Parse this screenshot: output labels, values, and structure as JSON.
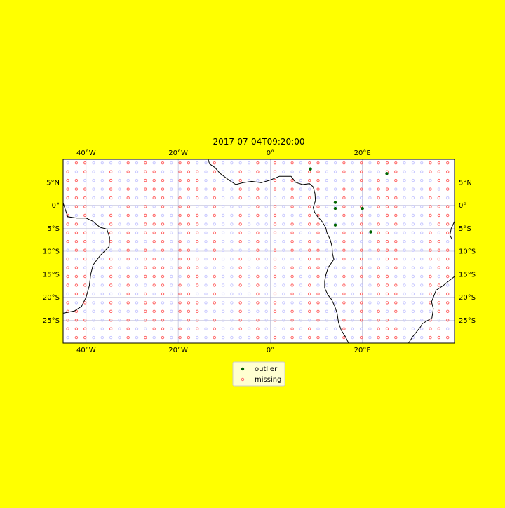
{
  "colors": {
    "background": "#ffff00",
    "ocean": "#ffffff",
    "grid": "#b0b0d0",
    "outlier": "#006400",
    "missing": "#ff6666",
    "valid": "#c8c8ff",
    "coast": "#000000",
    "legend_bg": "#ffffd0"
  },
  "chart_data": {
    "type": "scatter",
    "title": "2017-07-04T09:20:00",
    "xlim": [
      -45,
      40
    ],
    "ylim": [
      -30,
      10
    ],
    "x_ticks": [
      {
        "value": -40,
        "label": "40°W"
      },
      {
        "value": -20,
        "label": "20°W"
      },
      {
        "value": 0,
        "label": "0°"
      },
      {
        "value": 20,
        "label": "20°E"
      }
    ],
    "y_ticks": [
      {
        "value": 5,
        "label": "5°N"
      },
      {
        "value": 0,
        "label": "0°"
      },
      {
        "value": -5,
        "label": "5°S"
      },
      {
        "value": -10,
        "label": "10°S"
      },
      {
        "value": -15,
        "label": "15°S"
      },
      {
        "value": -20,
        "label": "20°S"
      },
      {
        "value": -25,
        "label": "25°S"
      }
    ],
    "grid": true,
    "legend_position": "bottom-center",
    "legend": [
      {
        "name": "outlier",
        "color": "#006400"
      },
      {
        "name": "missing",
        "color": "#ff6666"
      }
    ],
    "grid_points": {
      "lon_start": -44,
      "lon_step": 1.875,
      "lon_count": 45,
      "lat_start": 9.2,
      "lat_step": -1.9,
      "lat_count": 21
    },
    "missing_columns": [
      0,
      1,
      2,
      5,
      7,
      9,
      10,
      11,
      13,
      14,
      15,
      17,
      20,
      22,
      24,
      26,
      28,
      29,
      32,
      34,
      36,
      37,
      38,
      42,
      43,
      44
    ],
    "outliers": [
      {
        "lon": 8.7,
        "lat": 7.9
      },
      {
        "lon": 25.3,
        "lat": 6.9
      },
      {
        "lon": 14.1,
        "lat": 0.6
      },
      {
        "lon": 14.1,
        "lat": -0.7
      },
      {
        "lon": 20.0,
        "lat": -0.7
      },
      {
        "lon": 14.1,
        "lat": -4.3
      },
      {
        "lon": 21.8,
        "lat": -5.8
      }
    ],
    "coastlines": {
      "africa": [
        [
          -13.5,
          10
        ],
        [
          -13.2,
          9.0
        ],
        [
          -12.0,
          8.2
        ],
        [
          -11.0,
          7.0
        ],
        [
          -9.0,
          5.5
        ],
        [
          -7.5,
          4.5
        ],
        [
          -6.0,
          4.9
        ],
        [
          -4.0,
          5.2
        ],
        [
          -2.0,
          4.9
        ],
        [
          0.0,
          5.5
        ],
        [
          2.0,
          6.3
        ],
        [
          4.5,
          6.3
        ],
        [
          5.5,
          5.0
        ],
        [
          7.0,
          4.5
        ],
        [
          8.5,
          4.7
        ],
        [
          9.3,
          4.0
        ],
        [
          9.7,
          2.5
        ],
        [
          9.8,
          1.0
        ],
        [
          9.3,
          -0.5
        ],
        [
          9.6,
          -1.5
        ],
        [
          10.3,
          -2.5
        ],
        [
          11.2,
          -3.5
        ],
        [
          12.0,
          -4.8
        ],
        [
          12.3,
          -6.0
        ],
        [
          13.0,
          -7.5
        ],
        [
          13.4,
          -9.0
        ],
        [
          13.5,
          -10.5
        ],
        [
          13.8,
          -11.8
        ],
        [
          12.6,
          -13.5
        ],
        [
          12.1,
          -15.0
        ],
        [
          11.8,
          -16.5
        ],
        [
          11.8,
          -18.0
        ],
        [
          12.5,
          -19.5
        ],
        [
          13.3,
          -20.5
        ],
        [
          14.0,
          -22.0
        ],
        [
          14.5,
          -23.5
        ],
        [
          14.8,
          -25.5
        ],
        [
          15.4,
          -27.2
        ],
        [
          16.3,
          -28.6
        ],
        [
          17.0,
          -30
        ]
      ],
      "south_america": [
        [
          -45,
          0.5
        ],
        [
          -44.0,
          -2.5
        ],
        [
          -42.0,
          -2.8
        ],
        [
          -40.0,
          -2.8
        ],
        [
          -38.5,
          -3.5
        ],
        [
          -37.0,
          -4.8
        ],
        [
          -35.5,
          -5.2
        ],
        [
          -34.9,
          -7.0
        ],
        [
          -35.0,
          -9.0
        ],
        [
          -37.0,
          -11.0
        ],
        [
          -38.5,
          -13.0
        ],
        [
          -39.0,
          -15.0
        ],
        [
          -39.3,
          -17.5
        ],
        [
          -40.0,
          -20.0
        ],
        [
          -41.0,
          -22.0
        ],
        [
          -42.5,
          -23.0
        ],
        [
          -45,
          -23.5
        ]
      ],
      "madagascar": [
        [
          40,
          -15.5
        ],
        [
          37.5,
          -17.5
        ],
        [
          36.0,
          -18.5
        ],
        [
          35.0,
          -21.0
        ],
        [
          35.4,
          -22.5
        ],
        [
          35.1,
          -24.5
        ],
        [
          33.0,
          -25.8
        ],
        [
          32.6,
          -26.5
        ],
        [
          31.0,
          -28.5
        ],
        [
          30.0,
          -30
        ]
      ],
      "horn": [
        [
          40,
          -3.5
        ],
        [
          39.3,
          -5.0
        ],
        [
          39.0,
          -6.5
        ],
        [
          39.5,
          -7.5
        ]
      ]
    }
  }
}
